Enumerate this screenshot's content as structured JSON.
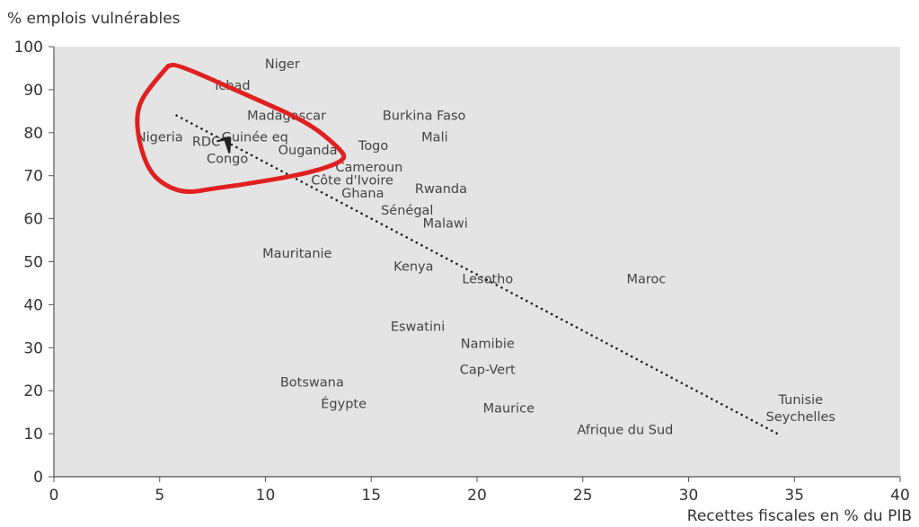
{
  "chart_data": {
    "type": "scatter",
    "ylabel": "% emplois vulnérables",
    "xlabel": "Recettes fiscales en % du PIB",
    "xlim": [
      0,
      40
    ],
    "ylim": [
      0,
      100
    ],
    "xticks": [
      "0",
      "5",
      "10",
      "15",
      "20",
      "25",
      "30",
      "35",
      "40"
    ],
    "yticks": [
      "0",
      "10",
      "20",
      "30",
      "40",
      "50",
      "60",
      "70",
      "80",
      "90",
      "100"
    ],
    "grid": false,
    "background": "#e4e4e4",
    "points": [
      {
        "label": "Niger",
        "x": 10.8,
        "y": 96
      },
      {
        "label": "Tchad",
        "x": 8.4,
        "y": 91
      },
      {
        "label": "Madagascar",
        "x": 11,
        "y": 84
      },
      {
        "label": "Burkina Faso",
        "x": 17.5,
        "y": 84
      },
      {
        "label": "Nigeria",
        "x": 5,
        "y": 79
      },
      {
        "label": "Guinée eq",
        "x": 9.5,
        "y": 79
      },
      {
        "label": "Mali",
        "x": 18,
        "y": 79
      },
      {
        "label": "RDC",
        "x": 7.2,
        "y": 78
      },
      {
        "label": "Ouganda",
        "x": 12,
        "y": 76
      },
      {
        "label": "Togo",
        "x": 15.1,
        "y": 77
      },
      {
        "label": "Congo",
        "x": 8.2,
        "y": 74
      },
      {
        "label": "Cameroun",
        "x": 14.9,
        "y": 72
      },
      {
        "label": "Côte d'Ivoire",
        "x": 14.1,
        "y": 69
      },
      {
        "label": "Rwanda",
        "x": 18.3,
        "y": 67
      },
      {
        "label": "Ghana",
        "x": 14.6,
        "y": 66
      },
      {
        "label": "Sénégal",
        "x": 16.7,
        "y": 62
      },
      {
        "label": "Malawi",
        "x": 18.5,
        "y": 59
      },
      {
        "label": "Mauritanie",
        "x": 11.5,
        "y": 52
      },
      {
        "label": "Kenya",
        "x": 17,
        "y": 49
      },
      {
        "label": "Lesotho",
        "x": 20.5,
        "y": 46
      },
      {
        "label": "Maroc",
        "x": 28,
        "y": 46
      },
      {
        "label": "Eswatini",
        "x": 17.2,
        "y": 35
      },
      {
        "label": "Namibie",
        "x": 20.5,
        "y": 31
      },
      {
        "label": "Cap-Vert",
        "x": 20.5,
        "y": 25
      },
      {
        "label": "Botswana",
        "x": 12.2,
        "y": 22
      },
      {
        "label": "Égypte",
        "x": 13.7,
        "y": 17
      },
      {
        "label": "Maurice",
        "x": 21.5,
        "y": 16
      },
      {
        "label": "Tunisie",
        "x": 35.3,
        "y": 18
      },
      {
        "label": "Seychelles",
        "x": 35.3,
        "y": 14
      },
      {
        "label": "Afrique du Sud",
        "x": 27,
        "y": 11
      }
    ],
    "trendline": {
      "x": [
        5.8,
        34.2
      ],
      "y": [
        84,
        10
      ],
      "style": "dotted"
    },
    "annotation": {
      "type": "hand-drawn-outline",
      "color": "#e02020"
    }
  }
}
